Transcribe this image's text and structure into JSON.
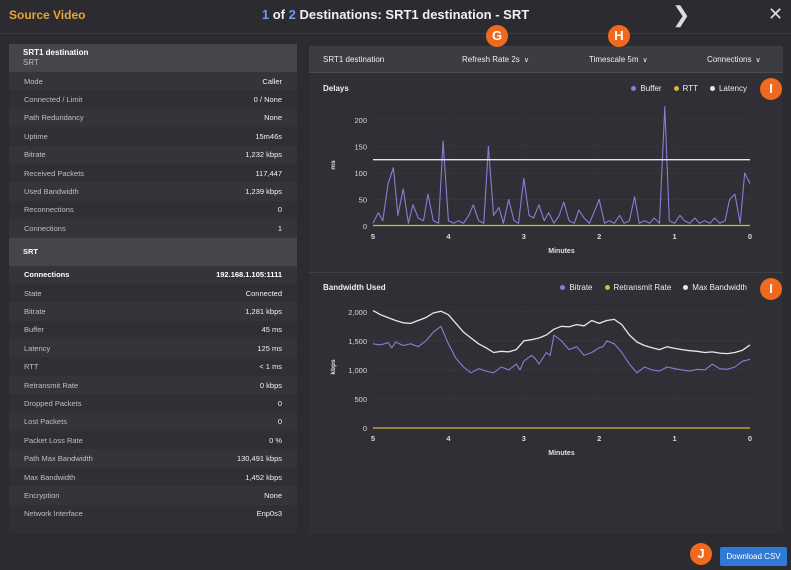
{
  "header": {
    "app_title": "Source Video",
    "position_current": "1",
    "position_of": "of",
    "position_total": "2",
    "destinations_label": "Destinations: SRT1 destination - SRT",
    "next_icon": "chevron-right-icon",
    "close_icon": "close-icon"
  },
  "left_panel": {
    "header_title": "SRT1 destination",
    "header_subtitle": "SRT",
    "rows": [
      {
        "label": "Mode",
        "value": "Caller"
      },
      {
        "label": "Connected / Limit",
        "value": "0 / None"
      },
      {
        "label": "Path Redundancy",
        "value": "None"
      },
      {
        "label": "Uptime",
        "value": "15m46s"
      },
      {
        "label": "Bitrate",
        "value": "1,232 kbps"
      },
      {
        "label": "Received Packets",
        "value": "117,447"
      },
      {
        "label": "Used Bandwidth",
        "value": "1,239 kbps"
      },
      {
        "label": "Reconnections",
        "value": "0"
      },
      {
        "label": "Connections",
        "value": "1"
      }
    ],
    "section_title": "SRT",
    "srt_rows": [
      {
        "label": "Connections",
        "value": "192.168.1.105:1111"
      },
      {
        "label": "State",
        "value": "Connected"
      },
      {
        "label": "Bitrate",
        "value": "1,281 kbps"
      },
      {
        "label": "Buffer",
        "value": "45 ms"
      },
      {
        "label": "Latency",
        "value": "125 ms"
      },
      {
        "label": "RTT",
        "value": "< 1 ms"
      },
      {
        "label": "Retransmit Rate",
        "value": "0 kbps"
      },
      {
        "label": "Dropped Packets",
        "value": "0"
      },
      {
        "label": "Lost Packets",
        "value": "0"
      },
      {
        "label": "Packet Loss Rate",
        "value": "0 %"
      },
      {
        "label": "Path Max Bandwidth",
        "value": "130,491 kbps"
      },
      {
        "label": "Max Bandwidth",
        "value": "1,452 kbps"
      },
      {
        "label": "Encryption",
        "value": "None"
      },
      {
        "label": "Network Interface",
        "value": "Enp0s3"
      }
    ]
  },
  "right_panel": {
    "title": "SRT1 destination",
    "refresh_label": "Refresh Rate 2s",
    "timescale_label": "Timescale 5m",
    "connections_label": "Connections",
    "chevron_icon": "chevron-down-icon"
  },
  "markers": {
    "g": "G",
    "h": "H",
    "i1": "I",
    "i2": "I",
    "j": "J"
  },
  "actions": {
    "download_label": "Download CSV"
  },
  "colors": {
    "accent_orange": "#e8a33a",
    "marker_orange": "#ef6a1f",
    "series_purple": "#8f7ad6",
    "series_yellow": "#d9b23a",
    "series_white": "#e8e8e8",
    "button_blue": "#2e7ad6"
  },
  "chart_data": [
    {
      "type": "line",
      "title": "Delays",
      "xlabel": "Minutes",
      "ylabel": "ms",
      "x_ticks": [
        5,
        4,
        3,
        2,
        1,
        0
      ],
      "y_ticks": [
        0,
        50,
        100,
        150,
        200
      ],
      "xlim": [
        5,
        0
      ],
      "ylim": [
        0,
        230
      ],
      "legend_placement": "top-right",
      "grid": true,
      "series": [
        {
          "name": "Buffer",
          "color": "#8f7ad6",
          "x": [
            5,
            4.93,
            4.87,
            4.8,
            4.73,
            4.67,
            4.6,
            4.53,
            4.47,
            4.4,
            4.33,
            4.27,
            4.2,
            4.13,
            4.07,
            4,
            3.93,
            3.87,
            3.8,
            3.73,
            3.67,
            3.6,
            3.53,
            3.47,
            3.4,
            3.33,
            3.27,
            3.2,
            3.13,
            3.07,
            3,
            2.93,
            2.87,
            2.8,
            2.73,
            2.67,
            2.6,
            2.53,
            2.47,
            2.4,
            2.33,
            2.27,
            2.2,
            2.13,
            2.07,
            2,
            1.93,
            1.87,
            1.8,
            1.73,
            1.67,
            1.6,
            1.53,
            1.47,
            1.4,
            1.33,
            1.27,
            1.2,
            1.13,
            1.07,
            1,
            0.93,
            0.87,
            0.8,
            0.73,
            0.67,
            0.6,
            0.53,
            0.47,
            0.4,
            0.33,
            0.27,
            0.2,
            0.13,
            0.07,
            0
          ],
          "values": [
            5,
            25,
            10,
            80,
            110,
            20,
            70,
            5,
            40,
            15,
            10,
            60,
            10,
            5,
            160,
            10,
            5,
            10,
            5,
            20,
            40,
            10,
            5,
            150,
            20,
            35,
            5,
            50,
            10,
            5,
            90,
            20,
            15,
            40,
            10,
            25,
            5,
            20,
            45,
            10,
            5,
            30,
            15,
            5,
            25,
            50,
            5,
            10,
            5,
            20,
            5,
            10,
            55,
            5,
            10,
            5,
            15,
            5,
            225,
            10,
            5,
            20,
            10,
            5,
            15,
            5,
            10,
            5,
            15,
            5,
            10,
            50,
            60,
            5,
            100,
            80
          ]
        },
        {
          "name": "RTT",
          "color": "#d9b23a",
          "x": [
            5,
            0
          ],
          "values": [
            1,
            1
          ]
        },
        {
          "name": "Latency",
          "color": "#e8e8e8",
          "x": [
            5,
            0
          ],
          "values": [
            125,
            125
          ]
        }
      ]
    },
    {
      "type": "line",
      "title": "Bandwidth Used",
      "xlabel": "Minutes",
      "ylabel": "kbps",
      "x_ticks": [
        5,
        4,
        3,
        2,
        1,
        0
      ],
      "y_ticks": [
        0,
        500,
        1000,
        1500,
        2000
      ],
      "y_tick_labels": [
        "0",
        "500",
        "1,000",
        "1,500",
        "2,000"
      ],
      "xlim": [
        5,
        0
      ],
      "ylim": [
        0,
        2100
      ],
      "legend_placement": "top-right",
      "grid": true,
      "series": [
        {
          "name": "Bitrate",
          "color": "#8f7ad6",
          "x": [
            5,
            4.9,
            4.8,
            4.75,
            4.7,
            4.6,
            4.5,
            4.4,
            4.3,
            4.2,
            4.15,
            4.1,
            4,
            3.9,
            3.8,
            3.7,
            3.6,
            3.5,
            3.4,
            3.3,
            3.2,
            3.1,
            3.05,
            3,
            2.9,
            2.85,
            2.8,
            2.7,
            2.65,
            2.6,
            2.5,
            2.4,
            2.3,
            2.2,
            2.1,
            2,
            1.95,
            1.9,
            1.8,
            1.7,
            1.6,
            1.5,
            1.4,
            1.3,
            1.2,
            1.1,
            1,
            0.9,
            0.8,
            0.7,
            0.6,
            0.5,
            0.4,
            0.3,
            0.2,
            0.1,
            0
          ],
          "values": [
            1450,
            1430,
            1470,
            1380,
            1480,
            1420,
            1450,
            1400,
            1500,
            1650,
            1700,
            1750,
            1450,
            1200,
            1050,
            950,
            1020,
            980,
            950,
            1050,
            1000,
            1100,
            1000,
            1150,
            1250,
            1200,
            1100,
            1300,
            1250,
            1600,
            1500,
            1350,
            1400,
            1250,
            1300,
            1380,
            1400,
            1500,
            1450,
            1300,
            1100,
            950,
            1050,
            1000,
            980,
            1050,
            1020,
            1000,
            980,
            1010,
            1000,
            1100,
            1020,
            1010,
            1050,
            1150,
            1180
          ]
        },
        {
          "name": "Retransmit Rate",
          "color": "#d9b23a",
          "x": [
            5,
            0
          ],
          "values": [
            0,
            0
          ]
        },
        {
          "name": "Max Bandwidth",
          "color": "#e8e8e8",
          "x": [
            5,
            4.9,
            4.8,
            4.7,
            4.6,
            4.5,
            4.4,
            4.3,
            4.2,
            4.1,
            4,
            3.9,
            3.8,
            3.7,
            3.6,
            3.5,
            3.4,
            3.3,
            3.2,
            3.1,
            3,
            2.9,
            2.8,
            2.7,
            2.6,
            2.5,
            2.4,
            2.3,
            2.2,
            2.1,
            2,
            1.9,
            1.8,
            1.7,
            1.6,
            1.5,
            1.4,
            1.3,
            1.2,
            1.1,
            1,
            0.9,
            0.8,
            0.7,
            0.6,
            0.5,
            0.4,
            0.3,
            0.2,
            0.1,
            0
          ],
          "values": [
            2020,
            1950,
            1900,
            1850,
            1810,
            1800,
            1850,
            1900,
            1980,
            2010,
            1950,
            1800,
            1650,
            1550,
            1450,
            1380,
            1300,
            1320,
            1310,
            1350,
            1500,
            1520,
            1550,
            1600,
            1700,
            1750,
            1740,
            1780,
            1760,
            1850,
            1800,
            1850,
            1870,
            1780,
            1600,
            1480,
            1420,
            1380,
            1350,
            1400,
            1370,
            1350,
            1330,
            1320,
            1300,
            1310,
            1290,
            1280,
            1300,
            1340,
            1430
          ]
        }
      ]
    }
  ]
}
